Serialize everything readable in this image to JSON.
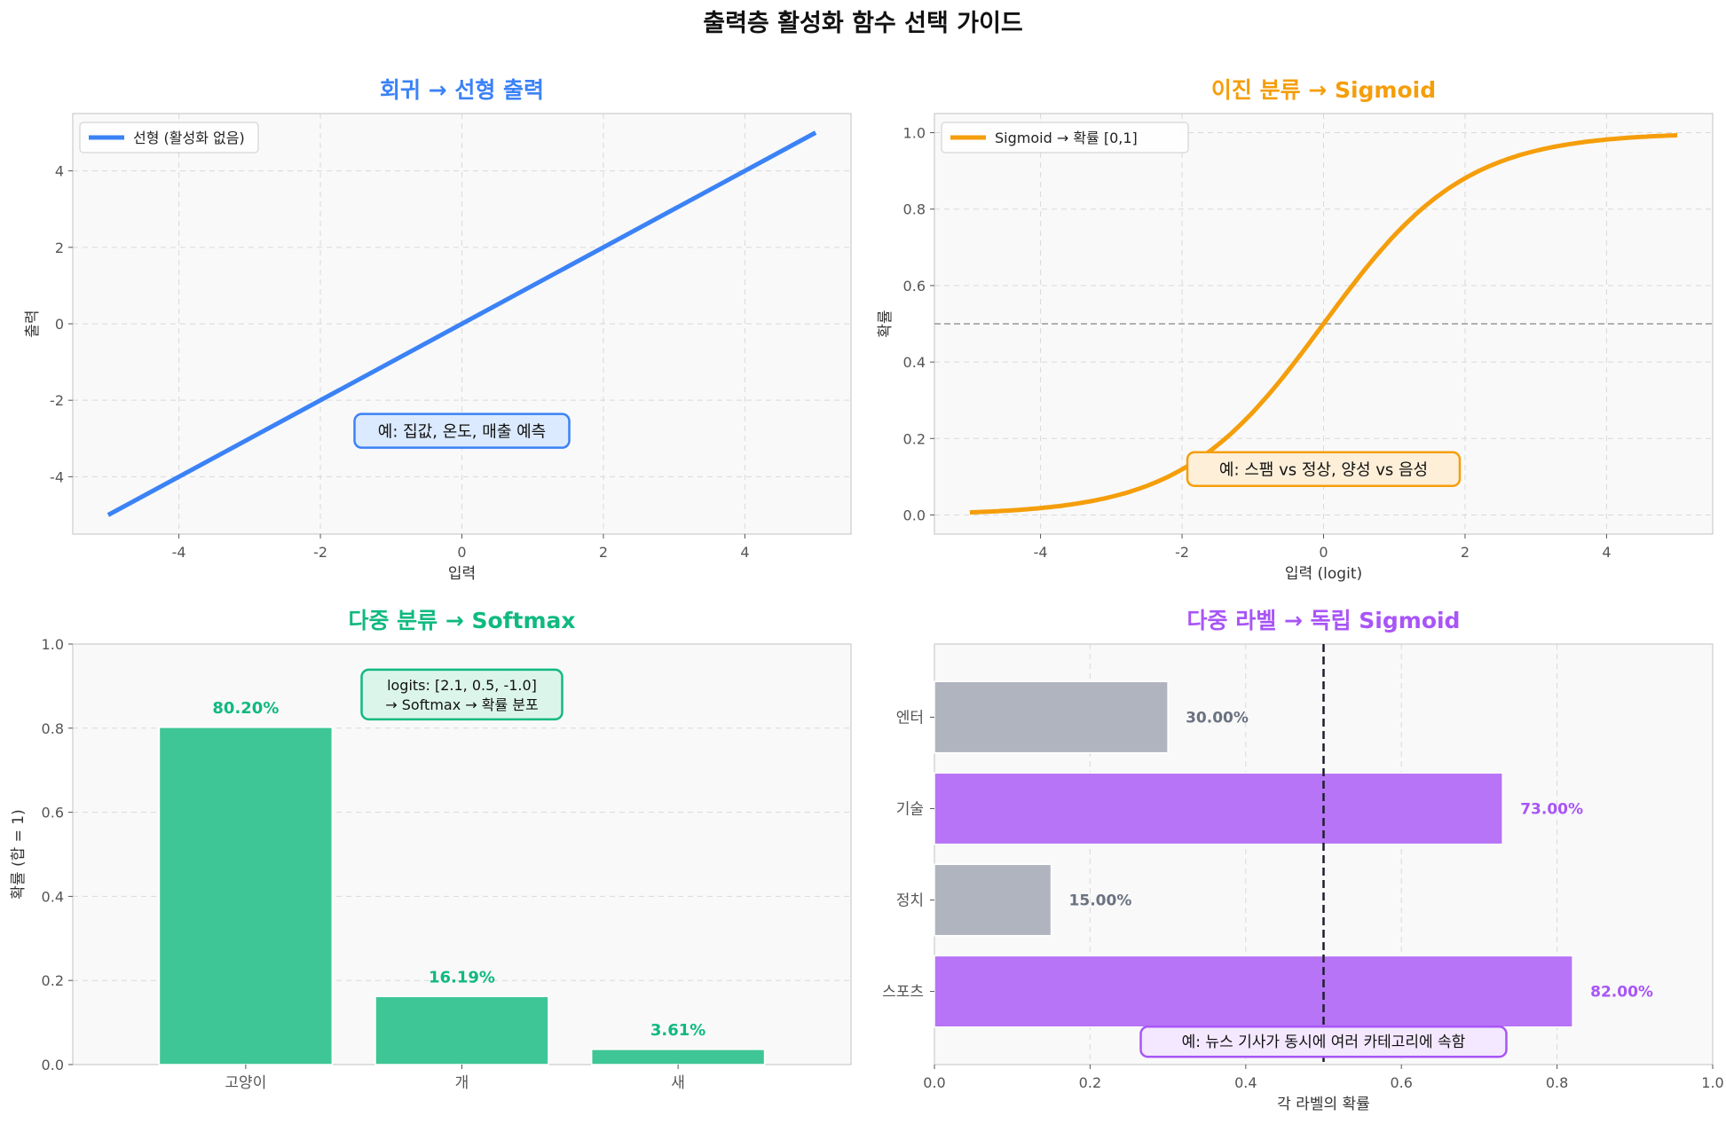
{
  "suptitle": "출력층 활성화 함수 선택 가이드",
  "chart_data": [
    {
      "type": "line",
      "title": "회귀 → 선형 출력",
      "title_color": "#3b82f6",
      "xlabel": "입력",
      "ylabel": "출력",
      "xlim": [
        -5.5,
        5.5
      ],
      "ylim": [
        -5.5,
        5.5
      ],
      "xticks": [
        -4,
        -2,
        0,
        2,
        4
      ],
      "yticks": [
        -4,
        -2,
        0,
        2,
        4
      ],
      "grid": true,
      "legend": "upper-left",
      "series": [
        {
          "name": "선형 (활성화 없음)",
          "color": "#3b82f6",
          "function": "linear",
          "x": [
            -5,
            5
          ],
          "y": [
            -5,
            5
          ]
        }
      ],
      "annotation": {
        "text": "예: 집값, 온도, 매출 예측",
        "x": 0,
        "y": -2.8,
        "color": "#3b82f6",
        "bg": "#dbeafe"
      }
    },
    {
      "type": "line",
      "title": "이진 분류 → Sigmoid",
      "title_color": "#f59e0b",
      "xlabel": "입력 (logit)",
      "ylabel": "확률",
      "xlim": [
        -5.5,
        5.5
      ],
      "ylim": [
        -0.05,
        1.05
      ],
      "xticks": [
        -4,
        -2,
        0,
        2,
        4
      ],
      "yticks": [
        0.0,
        0.2,
        0.4,
        0.6,
        0.8,
        1.0
      ],
      "grid": true,
      "legend": "upper-left",
      "hline": 0.5,
      "series": [
        {
          "name": "Sigmoid → 확률 [0,1]",
          "color": "#f59e0b",
          "function": "sigmoid",
          "x": [
            -5,
            5
          ]
        }
      ],
      "annotation": {
        "text": "예: 스팸 vs 정상, 양성 vs 음성",
        "x": 0,
        "y": 0.12,
        "color": "#f59e0b",
        "bg": "#fdefd8"
      }
    },
    {
      "type": "bar",
      "title": "다중 분류 → Softmax",
      "title_color": "#10b981",
      "ylabel": "확률 (합 = 1)",
      "categories": [
        "고양이",
        "개",
        "새"
      ],
      "values": [
        0.802,
        0.1619,
        0.0361
      ],
      "labels": [
        "80.20%",
        "16.19%",
        "3.61%"
      ],
      "ylim": [
        0,
        1.0
      ],
      "yticks": [
        0.0,
        0.2,
        0.4,
        0.6,
        0.8,
        1.0
      ],
      "grid": true,
      "bar_color": "#3ec696",
      "label_color": "#10b981",
      "annotation": {
        "lines": [
          "logits: [2.1, 0.5, -1.0]",
          "→ Softmax → 확률 분포"
        ],
        "x": 1.0,
        "y": 0.88,
        "color": "#10b981",
        "bg": "#dcf5ea"
      }
    },
    {
      "type": "barh",
      "title": "다중 라벨 → 독립 Sigmoid",
      "title_color": "#a855f7",
      "xlabel": "각 라벨의 확률",
      "categories": [
        "스포츠",
        "정치",
        "기술",
        "엔터"
      ],
      "values": [
        0.82,
        0.15,
        0.73,
        0.3
      ],
      "labels": [
        "82.00%",
        "15.00%",
        "73.00%",
        "30.00%"
      ],
      "xlim": [
        0,
        1.0
      ],
      "xticks": [
        0.0,
        0.2,
        0.4,
        0.6,
        0.8,
        1.0
      ],
      "threshold": 0.5,
      "grid": true,
      "active_color": "#b774f6",
      "active_label_color": "#a855f7",
      "inactive_color": "#b0b4bf",
      "inactive_label_color": "#6b7280",
      "annotation": {
        "text": "예: 뉴스 기사가 동시에 여러 카테고리에 속함",
        "x": 0.5,
        "y": -0.55,
        "color": "#a855f7",
        "bg": "#f3e8ff"
      }
    }
  ]
}
